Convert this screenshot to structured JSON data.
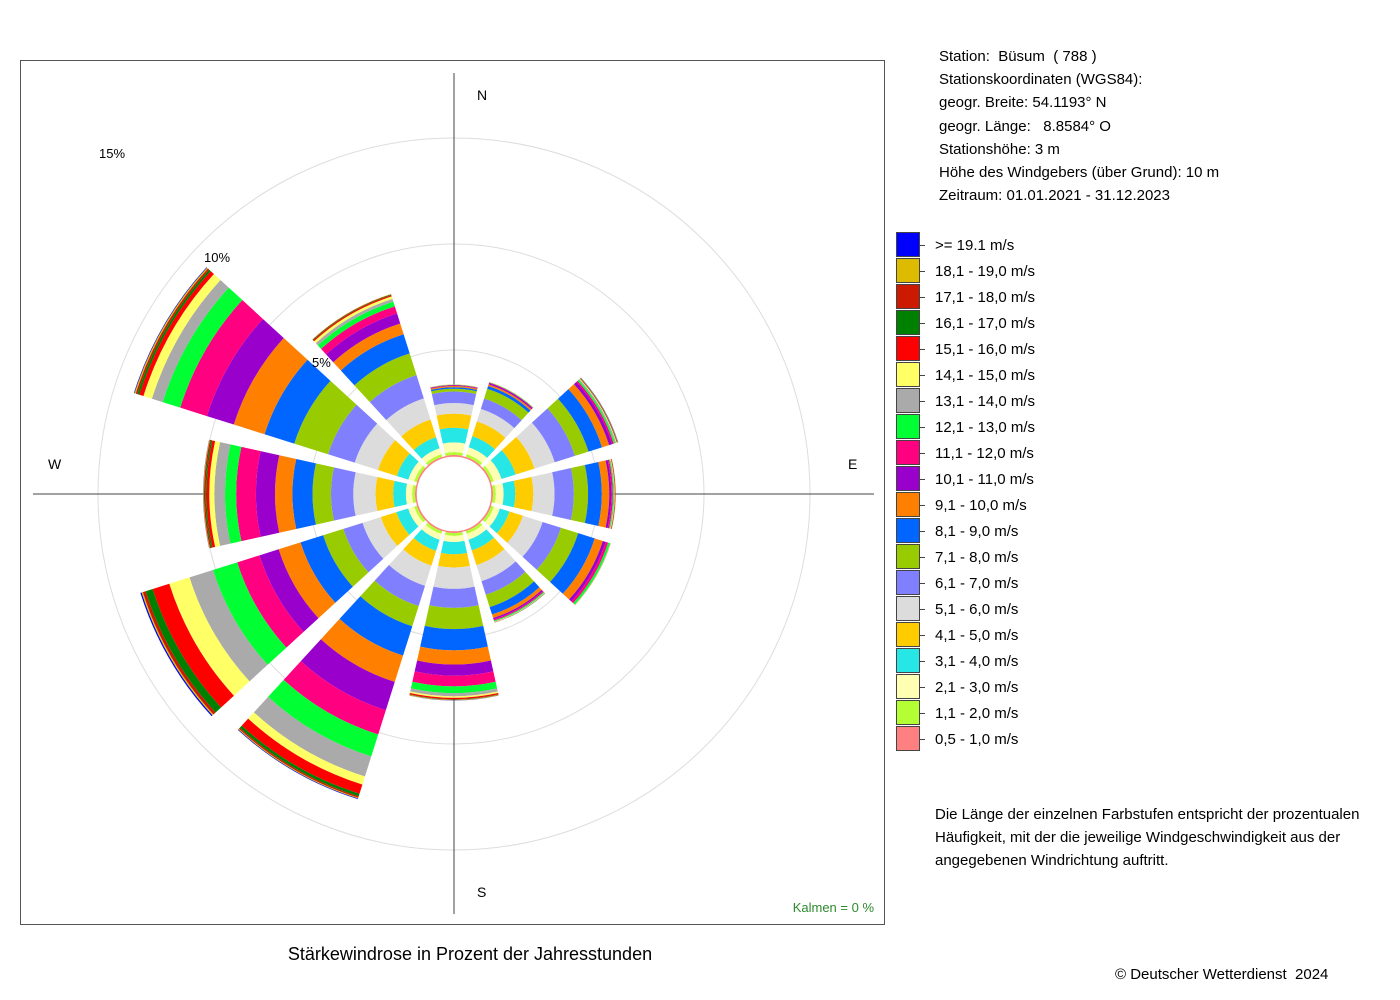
{
  "station": {
    "line1": "Station:  Büsum  ( 788 )",
    "line2": "Stationskoordinaten (WGS84):",
    "line3": "geogr. Breite: 54.1193° N",
    "line4": "geogr. Länge:   8.8584° O",
    "line5": "Stationshöhe: 3 m",
    "line6": "Höhe des Windgebers (über Grund): 10 m",
    "line7": "Zeitraum: 01.01.2021 - 31.12.2023"
  },
  "compass": {
    "north": "N",
    "east": "E",
    "south": "S",
    "west": "W"
  },
  "ring_labels": {
    "r5": "5%",
    "r10": "10%",
    "r15": "15%"
  },
  "calm": "Kalmen  =  0 %",
  "note": {
    "line1": "Die Länge der einzelnen Farbstufen entspricht der prozentualen",
    "line2": "Häufigkeit, mit der die jeweilige Windgeschwindigkeit aus der",
    "line3": "angegebenen Windrichtung auftritt."
  },
  "copyright": "© Deutscher Wetterdienst  2024",
  "chart_data": {
    "type": "wind-rose",
    "title": "Stärkewindrose in Prozent der Jahresstunden",
    "unit": "%",
    "rings": [
      5,
      10,
      15
    ],
    "calm_percent": 0,
    "directions": [
      "N",
      "30°",
      "60°",
      "E",
      "120°",
      "150°",
      "S",
      "210°",
      "240°",
      "W",
      "300°",
      "330°"
    ],
    "direction_angles_deg": [
      0,
      30,
      60,
      90,
      120,
      150,
      180,
      210,
      240,
      270,
      300,
      330
    ],
    "bins": [
      {
        "label": "0,5 - 1,0 m/s",
        "color": "#ff8080"
      },
      {
        "label": "1,1 - 2,0 m/s",
        "color": "#b3ff33"
      },
      {
        "label": "2,1 - 3,0 m/s",
        "color": "#ffffb3"
      },
      {
        "label": "3,1 - 4,0 m/s",
        "color": "#26e6e6"
      },
      {
        "label": "4,1 - 5,0 m/s",
        "color": "#ffcc00"
      },
      {
        "label": "5,1 - 6,0 m/s",
        "color": "#dcdcdc"
      },
      {
        "label": "6,1 - 7,0 m/s",
        "color": "#8080ff"
      },
      {
        "label": "7,1 - 8,0 m/s",
        "color": "#99cc00"
      },
      {
        "label": "8,1 - 9,0 m/s",
        "color": "#0066ff"
      },
      {
        "label": "9,1 - 10,0 m/s",
        "color": "#ff8000"
      },
      {
        "label": "10,1 - 11,0 m/s",
        "color": "#9900cc"
      },
      {
        "label": "11,1 - 12,0 m/s",
        "color": "#ff0080"
      },
      {
        "label": "12,1 - 13,0 m/s",
        "color": "#00ff33"
      },
      {
        "label": "13,1 - 14,0 m/s",
        "color": "#aaaaaa"
      },
      {
        "label": "14,1 - 15,0 m/s",
        "color": "#ffff66"
      },
      {
        "label": "15,1 - 16,0 m/s",
        "color": "#ff0000"
      },
      {
        "label": "16,1 - 17,0 m/s",
        "color": "#008000"
      },
      {
        "label": "17,1 - 18,0 m/s",
        "color": "#cc1a00"
      },
      {
        "label": "18,1 - 19,0 m/s",
        "color": "#ddbb00"
      },
      {
        "label": ">= 19.1 m/s",
        "color": "#0000ff"
      }
    ],
    "values": [
      [
        0.05,
        0.13,
        0.46,
        0.69,
        0.67,
        0.5,
        0.54,
        0.13,
        0.07,
        0.06,
        0.03,
        0.02,
        0.01,
        0.01,
        0.01,
        0,
        0,
        0,
        0,
        0
      ],
      [
        0.05,
        0.13,
        0.34,
        0.55,
        0.73,
        0.62,
        0.51,
        0.48,
        0.14,
        0.08,
        0.06,
        0.03,
        0.02,
        0.01,
        0.01,
        0,
        0,
        0,
        0,
        0
      ],
      [
        0.05,
        0.13,
        0.38,
        0.7,
        0.93,
        1.0,
        1.0,
        0.67,
        0.67,
        0.35,
        0.15,
        0.08,
        0.07,
        0.05,
        0.03,
        0.02,
        0.02,
        0.01,
        0.01,
        0.01
      ],
      [
        0.05,
        0.13,
        0.37,
        0.55,
        0.85,
        1.0,
        0.91,
        0.67,
        0.65,
        0.35,
        0.1,
        0.07,
        0.04,
        0.03,
        0.02,
        0.02,
        0.01,
        0.01,
        0.01,
        0
      ],
      [
        0.05,
        0.13,
        0.3,
        0.47,
        0.67,
        0.97,
        0.91,
        0.85,
        0.82,
        0.4,
        0.14,
        0.12,
        0.1,
        0.01,
        0.01,
        0.01,
        0,
        0,
        0,
        0
      ],
      [
        0.05,
        0.13,
        0.29,
        0.53,
        0.73,
        0.79,
        0.67,
        0.61,
        0.37,
        0.17,
        0.07,
        0.06,
        0.04,
        0.02,
        0.02,
        0.01,
        0.01,
        0,
        0,
        0
      ],
      [
        0.05,
        0.13,
        0.29,
        0.58,
        0.63,
        1.0,
        0.9,
        1.0,
        1.0,
        0.67,
        0.53,
        0.5,
        0.32,
        0.15,
        0.07,
        0.06,
        0.02,
        0.02,
        0.02,
        0.01
      ],
      [
        0.05,
        0.13,
        0.29,
        0.55,
        0.73,
        1.0,
        1.0,
        1.0,
        1.45,
        1.3,
        1.4,
        1.2,
        1.09,
        0.99,
        0.4,
        0.45,
        0.13,
        0.07,
        0.04,
        0.03
      ],
      [
        0.05,
        0.13,
        0.3,
        0.58,
        0.77,
        0.9,
        0.95,
        1.0,
        1.12,
        1.08,
        0.95,
        1.1,
        1.2,
        1.16,
        1.0,
        0.82,
        0.35,
        0.14,
        0.06,
        0.06
      ],
      [
        0.05,
        0.13,
        0.3,
        0.6,
        0.83,
        1.05,
        1.05,
        0.87,
        0.95,
        0.82,
        0.9,
        0.93,
        0.53,
        0.5,
        0.24,
        0.13,
        0.06,
        0.06,
        0.03,
        0.01
      ],
      [
        0.05,
        0.13,
        0.29,
        0.57,
        0.93,
        1.15,
        1.32,
        1.67,
        1.47,
        1.52,
        1.33,
        1.32,
        0.87,
        0.53,
        0.42,
        0.2,
        0.1,
        0.08,
        0.06,
        0.03
      ],
      [
        0.05,
        0.13,
        0.29,
        0.55,
        0.87,
        1.05,
        1.15,
        1.07,
        0.95,
        0.53,
        0.5,
        0.35,
        0.23,
        0.14,
        0.12,
        0.06,
        0.03,
        0.02,
        0.01,
        0
      ]
    ]
  }
}
